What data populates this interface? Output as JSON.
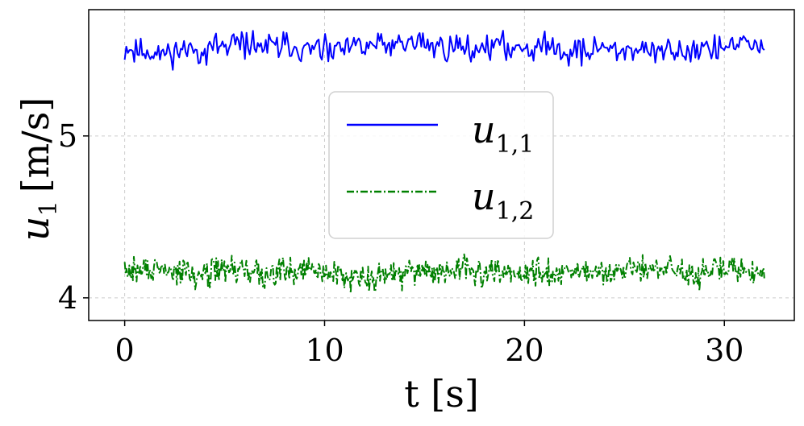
{
  "chart_data": {
    "type": "line",
    "title": "",
    "xlabel": "t [s]",
    "ylabel": {
      "var": "u",
      "sub": "1",
      "unit": "[m/s]"
    },
    "xlim": [
      -1.8,
      33.5
    ],
    "ylim": [
      3.86,
      5.78
    ],
    "xticks": [
      0,
      10,
      20,
      30
    ],
    "xtick_labels": [
      "0",
      "10",
      "20",
      "30"
    ],
    "yticks": [
      4,
      5
    ],
    "ytick_labels": [
      "4",
      "5"
    ],
    "grid": true,
    "legend_position": "center",
    "t_start": 0,
    "t_end": 32,
    "series": [
      {
        "name": "u_{1,1}",
        "label_var": "u",
        "label_sub": "1,1",
        "color": "#0000ff",
        "style": "solid",
        "mean": 5.54,
        "noise": 0.055,
        "samples": 400,
        "seed": 11
      },
      {
        "name": "u_{1,2}",
        "label_var": "u",
        "label_sub": "1,2",
        "color": "#008000",
        "style": "dashdot",
        "mean": 4.16,
        "noise": 0.055,
        "samples": 700,
        "seed": 29
      }
    ]
  }
}
